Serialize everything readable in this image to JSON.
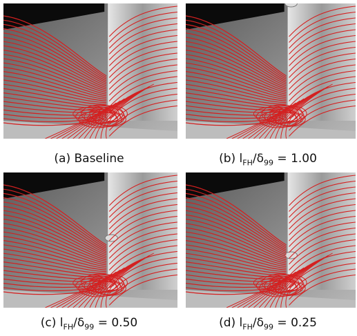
{
  "panels": [
    {
      "caption": [
        "(a) Baseline"
      ]
    },
    {
      "caption": [
        "(b) l",
        "FH",
        "/δ",
        "99",
        " = 1.00"
      ]
    },
    {
      "caption": [
        "(c) l",
        "FH",
        "/δ",
        "99",
        " = 0.50"
      ]
    },
    {
      "caption": [
        "(d) l",
        "FH",
        "/δ",
        "99",
        " = 0.25"
      ]
    }
  ]
}
